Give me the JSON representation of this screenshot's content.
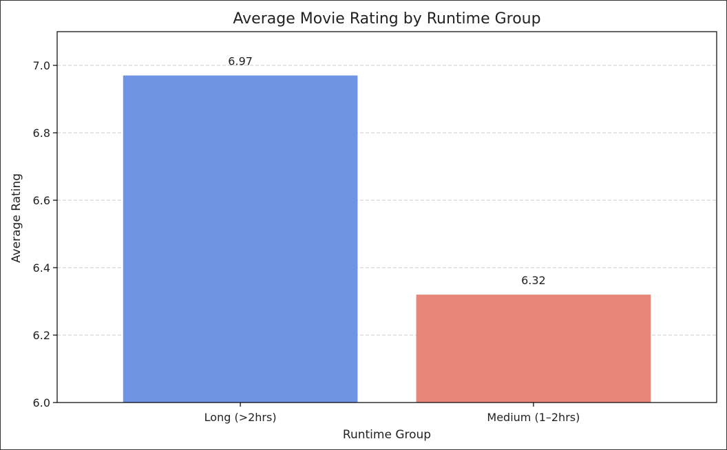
{
  "chart_data": {
    "type": "bar",
    "title": "Average Movie Rating by Runtime Group",
    "xlabel": "Runtime Group",
    "ylabel": "Average Rating",
    "categories": [
      "Long (>2hrs)",
      "Medium (1–2hrs)"
    ],
    "values": [
      6.97,
      6.32
    ],
    "value_labels": [
      "6.97",
      "6.32"
    ],
    "colors": [
      "#6f94e4",
      "#e88778"
    ],
    "ylim": [
      6.0,
      7.1
    ],
    "yticks": [
      6.0,
      6.2,
      6.4,
      6.6,
      6.8,
      7.0
    ],
    "ytick_labels": [
      "6.0",
      "6.2",
      "6.4",
      "6.6",
      "6.8",
      "7.0"
    ],
    "grid": "y-dashed",
    "legend": "none"
  }
}
